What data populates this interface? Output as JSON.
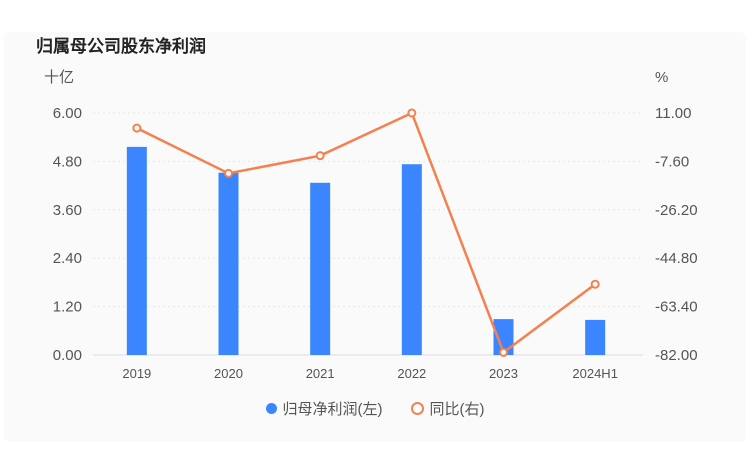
{
  "title": "归属母公司股东净利润",
  "chart_data": {
    "type": "bar+line",
    "title": "归属母公司股东净利润",
    "categories": [
      "2019",
      "2020",
      "2021",
      "2022",
      "2023",
      "2024H1"
    ],
    "left_axis": {
      "unit": "十亿",
      "ylim": [
        0,
        6
      ],
      "ticks": [
        "0.00",
        "1.20",
        "2.40",
        "3.60",
        "4.80",
        "6.00"
      ]
    },
    "right_axis": {
      "unit": "%",
      "ylim": [
        -82,
        11
      ],
      "ticks": [
        "-82.00",
        "-63.40",
        "-44.80",
        "-26.20",
        "-7.60",
        "11.00"
      ]
    },
    "series": [
      {
        "name": "归母净利润(左)",
        "type": "bar",
        "axis": "left",
        "color": "#3b86ff",
        "values": [
          5.16,
          4.52,
          4.27,
          4.73,
          0.89,
          0.87
        ]
      },
      {
        "name": "同比(右)",
        "type": "line",
        "axis": "right",
        "color": "#f5804f",
        "values": [
          5.2,
          -12.2,
          -5.4,
          11.0,
          -81.0,
          -54.8
        ]
      }
    ],
    "grid": true,
    "legend_position": "bottom"
  }
}
